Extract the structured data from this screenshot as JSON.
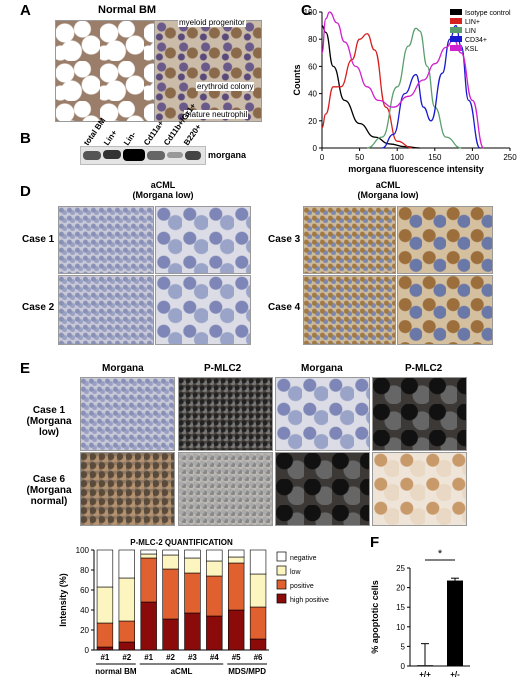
{
  "panels": {
    "a": {
      "letter": "A",
      "title": "Normal BM",
      "labels": [
        "myeloid progenitor",
        "erythroid colony",
        "mature neutrophil"
      ]
    },
    "b": {
      "letter": "B",
      "lanes": [
        "total BM",
        "Lin+",
        "Lin-",
        "Cd11a+",
        "Cd11b+/Gr1+",
        "B220+"
      ],
      "protein": "morgana"
    },
    "c": {
      "letter": "C"
    },
    "d": {
      "letter": "D",
      "group_title": "aCML",
      "group_sub": "(Morgana low)",
      "cases": [
        "Case 1",
        "Case 2",
        "Case 3",
        "Case 4"
      ]
    },
    "e": {
      "letter": "E",
      "col_labels": [
        "Morgana",
        "P-MLC2",
        "Morgana",
        "P-MLC2"
      ],
      "row_labels": [
        {
          "name": "Case 1",
          "sub": "(Morgana low)"
        },
        {
          "name": "Case 6",
          "sub": "(Morgana normal)"
        }
      ]
    },
    "f": {
      "letter": "F"
    }
  },
  "chart_data": [
    {
      "type": "line",
      "title": "",
      "xlabel": "morgana fluorescence intensity",
      "ylabel": "Counts",
      "xlim": [
        0,
        250
      ],
      "ylim": [
        0,
        100
      ],
      "xticks": [
        0,
        50,
        100,
        150,
        200,
        250
      ],
      "yticks": [
        0,
        20,
        40,
        60,
        80,
        100
      ],
      "legend_position": "top-right",
      "series": [
        {
          "name": "Isotype control",
          "color": "#000000",
          "x": [
            0,
            5,
            15,
            30,
            50,
            70,
            90,
            110,
            130
          ],
          "y": [
            90,
            85,
            60,
            35,
            18,
            8,
            3,
            1,
            0
          ]
        },
        {
          "name": "LIN+",
          "color": "#d62020",
          "x": [
            0,
            5,
            15,
            25,
            40,
            50,
            60,
            70,
            85,
            100,
            120
          ],
          "y": [
            15,
            25,
            45,
            45,
            65,
            80,
            84,
            72,
            30,
            5,
            0
          ]
        },
        {
          "name": "LIN",
          "color": "#5a9e6e",
          "x": [
            60,
            80,
            100,
            115,
            125,
            130,
            140,
            150,
            165,
            185
          ],
          "y": [
            0,
            8,
            45,
            75,
            88,
            86,
            60,
            30,
            8,
            0
          ]
        },
        {
          "name": "CD34+",
          "color": "#1a1ad0",
          "x": [
            80,
            95,
            110,
            125,
            135,
            145,
            160,
            170,
            178,
            185,
            195,
            210
          ],
          "y": [
            0,
            10,
            40,
            54,
            30,
            20,
            55,
            80,
            90,
            75,
            35,
            0
          ]
        },
        {
          "name": "KSL",
          "color": "#d020d0",
          "x": [
            0,
            5,
            10,
            20,
            30,
            45,
            60,
            75,
            95,
            115,
            135,
            150,
            165,
            175,
            185,
            200,
            215
          ],
          "y": [
            70,
            95,
            100,
            92,
            78,
            60,
            45,
            35,
            30,
            38,
            50,
            62,
            74,
            80,
            70,
            35,
            0
          ]
        }
      ]
    },
    {
      "type": "bar",
      "stacked": true,
      "title": "P-MLC-2 QUANTIFICATION",
      "xlabel": "",
      "ylabel": "Intensity (%)",
      "ylim": [
        0,
        100
      ],
      "yticks": [
        0,
        20,
        40,
        60,
        80,
        100
      ],
      "categories": [
        "#1",
        "#2",
        "#1",
        "#2",
        "#3",
        "#4",
        "#5",
        "#6"
      ],
      "groups": [
        {
          "label": "normal BM",
          "from": 0,
          "to": 1
        },
        {
          "label": "aCML",
          "from": 2,
          "to": 5
        },
        {
          "label": "MDS/MPD",
          "from": 6,
          "to": 7
        }
      ],
      "legend_position": "right",
      "series": [
        {
          "name": "high positive",
          "color": "#8b0b0b",
          "values": [
            3,
            8,
            48,
            31,
            37,
            34,
            40,
            11
          ]
        },
        {
          "name": "positive",
          "color": "#e06030",
          "values": [
            24,
            21,
            44,
            50,
            40,
            40,
            47,
            32
          ]
        },
        {
          "name": "low",
          "color": "#fdf5c0",
          "values": [
            36,
            43,
            4,
            14,
            15,
            15,
            6,
            33
          ]
        },
        {
          "name": "negative",
          "color": "#ffffff",
          "values": [
            37,
            28,
            4,
            5,
            8,
            11,
            7,
            24
          ]
        }
      ]
    },
    {
      "type": "bar",
      "title": "",
      "xlabel": "",
      "ylabel": "% apoptotic cells",
      "ylim": [
        0,
        25
      ],
      "yticks": [
        0,
        5,
        10,
        15,
        20,
        25
      ],
      "categories": [
        "+/+",
        "+/-"
      ],
      "values": [
        0.2,
        21.8
      ],
      "errors": [
        5.5,
        0.6
      ],
      "significance": "*"
    }
  ]
}
